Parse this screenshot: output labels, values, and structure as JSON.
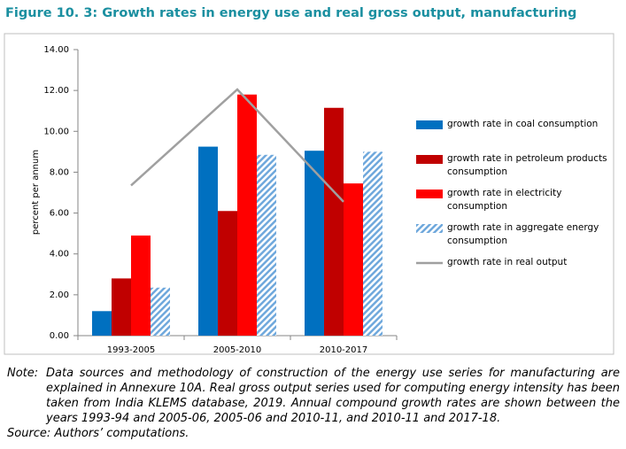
{
  "chart_data": {
    "type": "bar",
    "title": "Figure 10. 3: Growth rates in energy use and real gross output, manufacturing",
    "y_label": "percent per annum",
    "categories": [
      "1993-2005",
      "2005-2010",
      "2010-2017"
    ],
    "series": [
      {
        "name": "growth rate in coal consumption",
        "color": "#0070c0",
        "values": [
          1.2,
          9.25,
          9.05
        ]
      },
      {
        "name": "growth rate in petroleum products consumption",
        "color": "#c00000",
        "values": [
          2.8,
          6.1,
          11.15
        ]
      },
      {
        "name": "growth rate in electricity consumption",
        "color": "#ff0000",
        "values": [
          4.9,
          11.8,
          7.45
        ]
      },
      {
        "name": "growth rate in aggregate energy consumption",
        "color": "#6fa8dc",
        "hatched": true,
        "values": [
          2.35,
          8.85,
          9.0
        ]
      },
      {
        "name": "growth rate in real output",
        "color": "#a0a0a0",
        "type": "line",
        "values": [
          7.35,
          12.05,
          6.55
        ]
      }
    ],
    "ylim": [
      0,
      14
    ],
    "yticks": [
      {
        "value": 0,
        "label": "0.00"
      },
      {
        "value": 2,
        "label": "2.00"
      },
      {
        "value": 4,
        "label": "4.00"
      },
      {
        "value": 6,
        "label": "6.00"
      },
      {
        "value": 8,
        "label": "8.00"
      },
      {
        "value": 10,
        "label": "10.00"
      },
      {
        "value": 12,
        "label": "12.00"
      },
      {
        "value": 14,
        "label": "14.00"
      }
    ],
    "grid": false,
    "legend": "right"
  },
  "notes": {
    "note_label": "Note:",
    "note_lines": [
      "Data sources and methodology of construction of the energy use series for manufacturing are",
      "explained in Annexure 10A.  Real gross output series used for computing energy intensity has been",
      "taken from India KLEMS database, 2019. Annual compound growth rates are shown between the",
      "years 1993-94 and 2005-06, 2005-06 and 2010-11, and 2010-11 and 2017-18."
    ],
    "source": "Source: Authors’ computations."
  }
}
